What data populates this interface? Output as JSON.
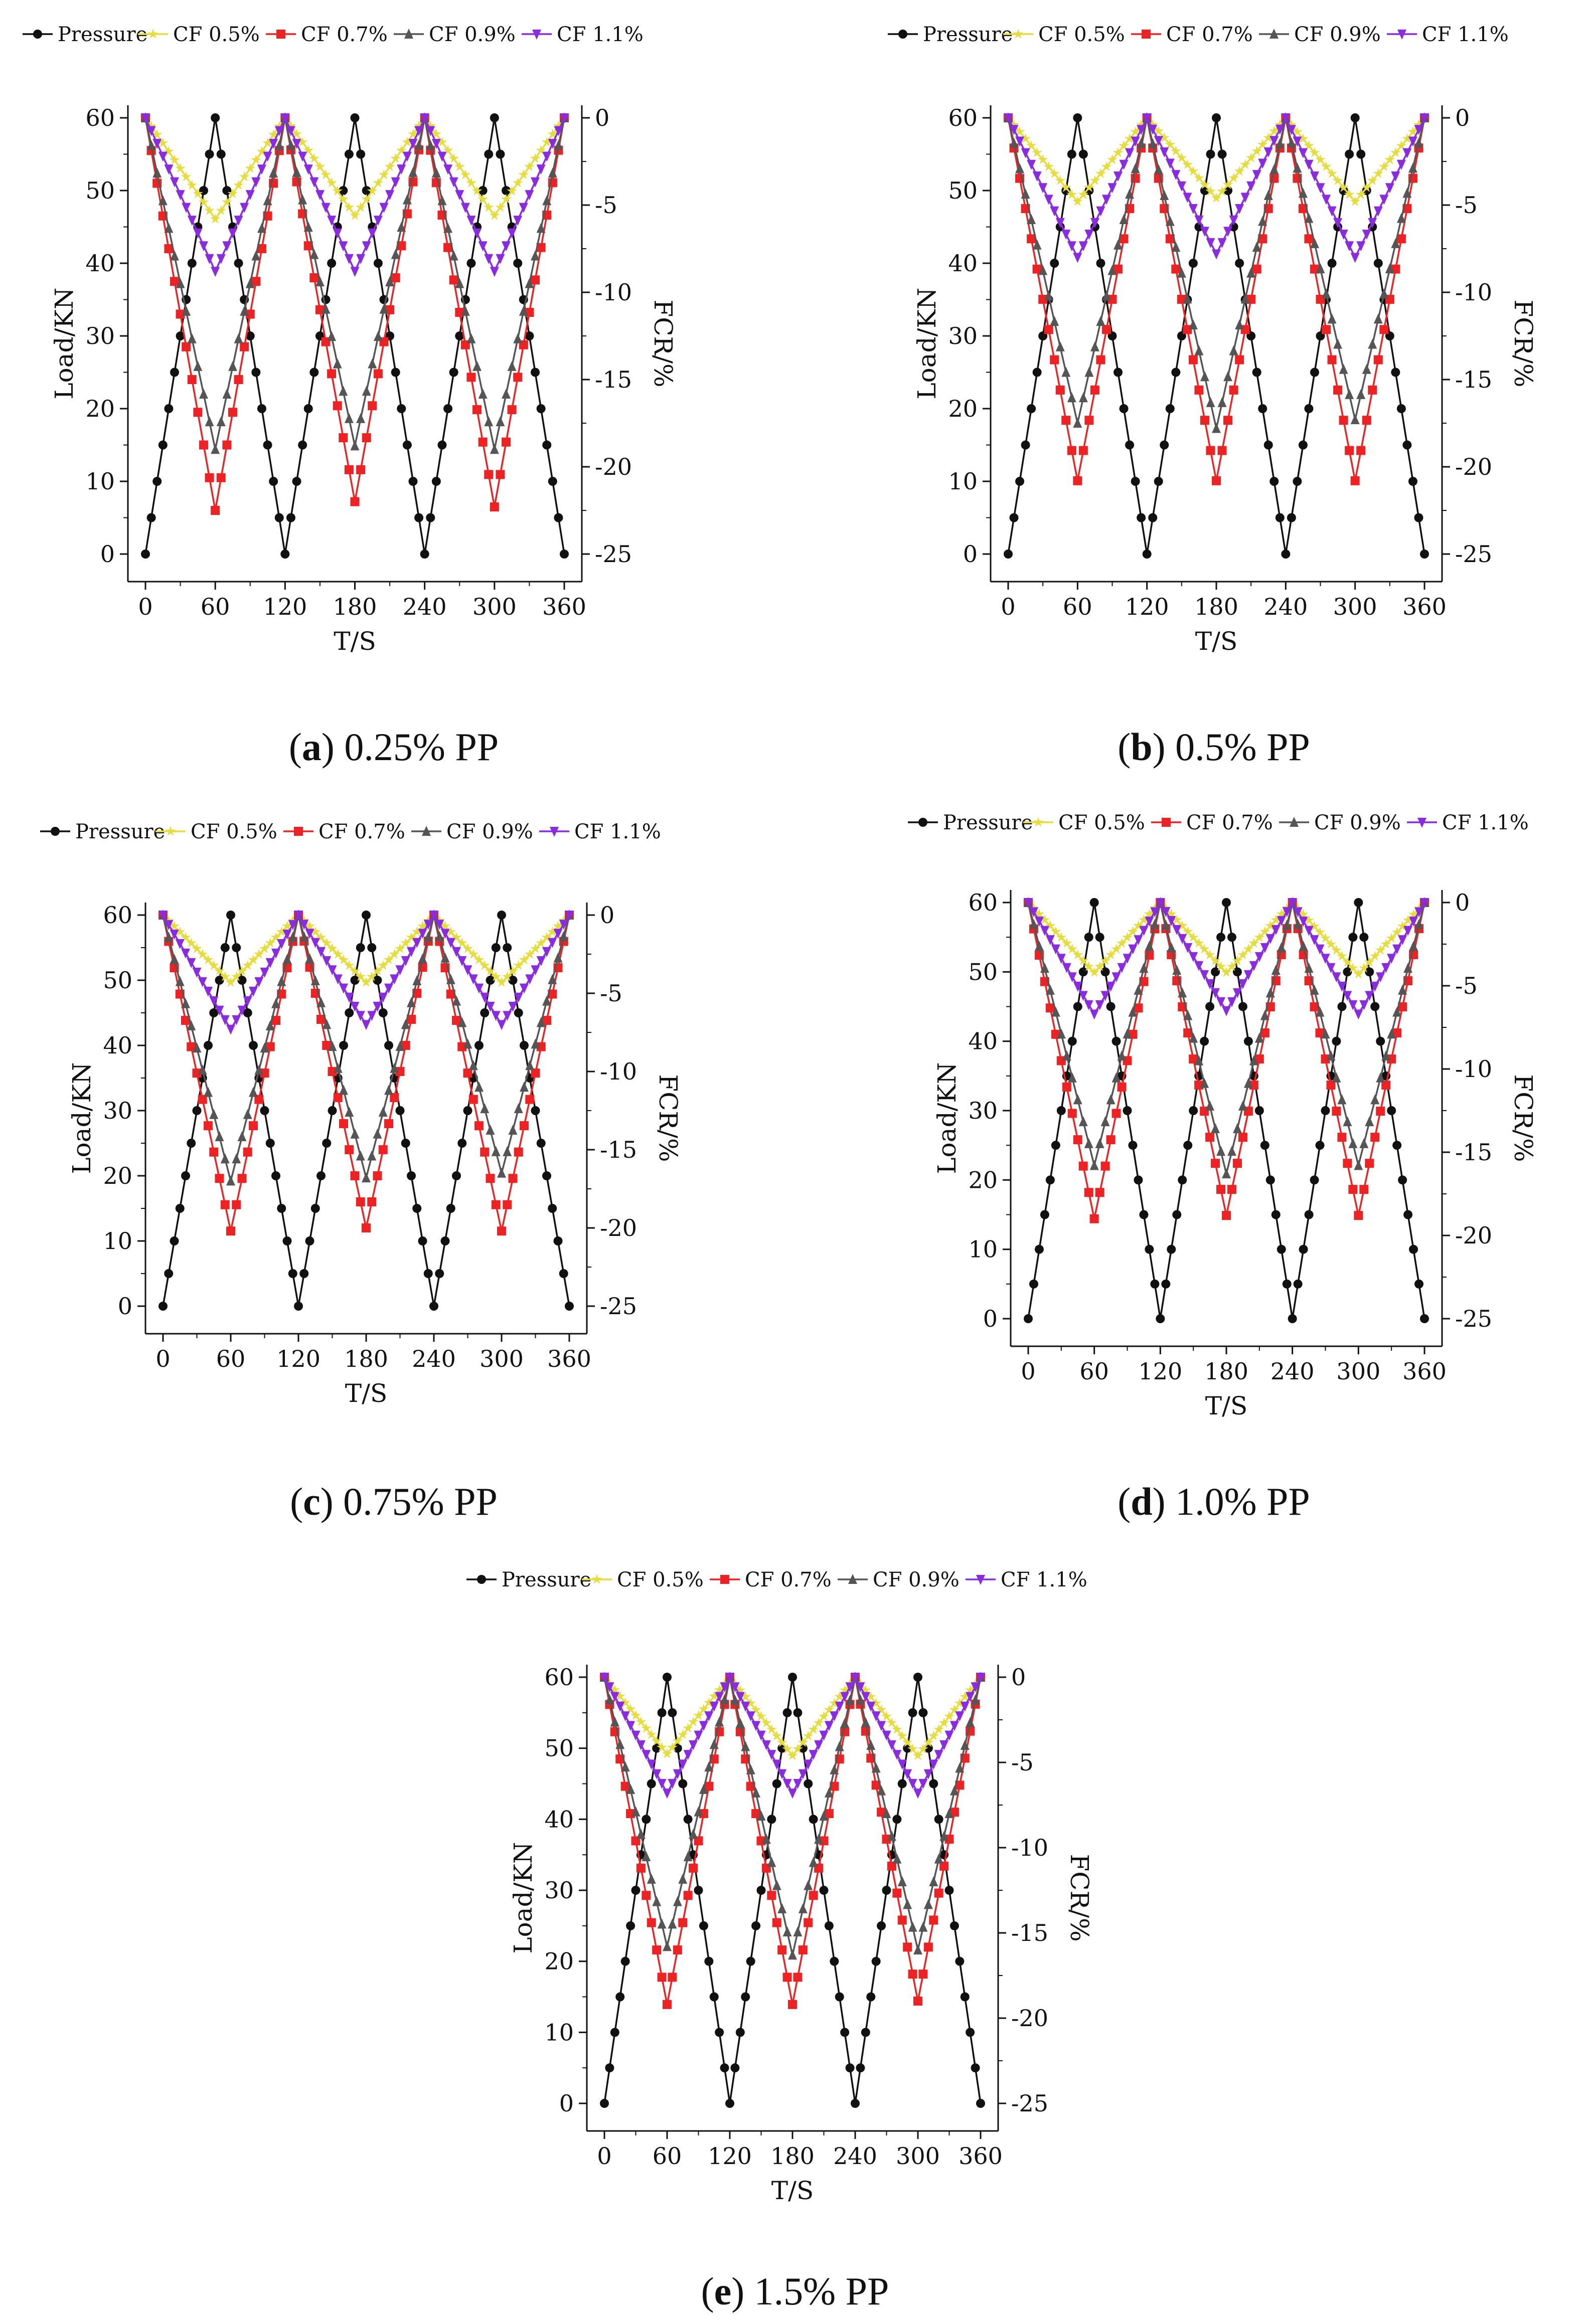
{
  "figure_colors": {
    "Pressure": "#111111",
    "CF 0.5%": "#e6dc3c",
    "CF 0.7%": "#ee2222",
    "CF 0.9%": "#555555",
    "CF 1.1%": "#8a2be2"
  },
  "captions": [
    {
      "letter": "a",
      "text": "0.25% PP"
    },
    {
      "letter": "b",
      "text": "0.5% PP"
    },
    {
      "letter": "c",
      "text": "0.75% PP"
    },
    {
      "letter": "d",
      "text": "1.0% PP"
    },
    {
      "letter": "e",
      "text": "1.5% PP"
    }
  ],
  "chart_data": [
    {
      "type": "line",
      "panel": "a",
      "title": "0.25% PP",
      "xlabel": "T/S",
      "ylabel": "Load/KN",
      "y2label": "FCR/%",
      "xlim": [
        0,
        360
      ],
      "ylim": [
        0,
        60
      ],
      "y2lim": [
        -25,
        0
      ],
      "xticks": [
        0,
        60,
        120,
        180,
        240,
        300,
        360
      ],
      "yticks": [
        0,
        10,
        20,
        30,
        40,
        50,
        60
      ],
      "y2ticks": [
        0,
        -5,
        -10,
        -15,
        -20,
        -25
      ],
      "x": [
        0,
        60,
        120,
        180,
        240,
        300,
        360
      ],
      "series": [
        {
          "name": "Pressure",
          "axis": "left",
          "values": [
            0,
            60,
            0,
            60,
            0,
            60,
            0
          ]
        },
        {
          "name": "CF 0.5%",
          "axis": "right",
          "values": [
            0,
            -5.8,
            0,
            -5.6,
            0,
            -5.6,
            0
          ]
        },
        {
          "name": "CF 0.7%",
          "axis": "right",
          "values": [
            0,
            -22.5,
            0,
            -22.0,
            0,
            -22.3,
            0
          ]
        },
        {
          "name": "CF 0.9%",
          "axis": "right",
          "values": [
            0,
            -19.0,
            0,
            -18.8,
            0,
            -19.0,
            0
          ]
        },
        {
          "name": "CF 1.1%",
          "axis": "right",
          "values": [
            0,
            -8.8,
            0,
            -8.8,
            0,
            -8.8,
            0
          ]
        }
      ]
    },
    {
      "type": "line",
      "panel": "b",
      "title": "0.5% PP",
      "xlabel": "T/S",
      "ylabel": "Load/KN",
      "y2label": "FCR/%",
      "xlim": [
        0,
        360
      ],
      "ylim": [
        0,
        60
      ],
      "y2lim": [
        -25,
        0
      ],
      "xticks": [
        0,
        60,
        120,
        180,
        240,
        300,
        360
      ],
      "yticks": [
        0,
        10,
        20,
        30,
        40,
        50,
        60
      ],
      "y2ticks": [
        0,
        -5,
        -10,
        -15,
        -20,
        -25
      ],
      "x": [
        0,
        60,
        120,
        180,
        240,
        300,
        360
      ],
      "series": [
        {
          "name": "Pressure",
          "axis": "left",
          "values": [
            0,
            60,
            0,
            60,
            0,
            60,
            0
          ]
        },
        {
          "name": "CF 0.5%",
          "axis": "right",
          "values": [
            0,
            -4.8,
            0,
            -4.6,
            0,
            -4.8,
            0
          ]
        },
        {
          "name": "CF 0.7%",
          "axis": "right",
          "values": [
            0,
            -20.8,
            0,
            -20.8,
            0,
            -20.8,
            0
          ]
        },
        {
          "name": "CF 0.9%",
          "axis": "right",
          "values": [
            0,
            -17.5,
            0,
            -17.8,
            0,
            -17.3,
            0
          ]
        },
        {
          "name": "CF 1.1%",
          "axis": "right",
          "values": [
            0,
            -8.0,
            0,
            -7.8,
            0,
            -8.0,
            0
          ]
        }
      ]
    },
    {
      "type": "line",
      "panel": "c",
      "title": "0.75% PP",
      "xlabel": "T/S",
      "ylabel": "Load/KN",
      "y2label": "FCR/%",
      "xlim": [
        0,
        360
      ],
      "ylim": [
        0,
        60
      ],
      "y2lim": [
        -25,
        0
      ],
      "xticks": [
        0,
        60,
        120,
        180,
        240,
        300,
        360
      ],
      "yticks": [
        0,
        10,
        20,
        30,
        40,
        50,
        60
      ],
      "y2ticks": [
        0,
        -5,
        -10,
        -15,
        -20,
        -25
      ],
      "x": [
        0,
        60,
        120,
        180,
        240,
        300,
        360
      ],
      "series": [
        {
          "name": "Pressure",
          "axis": "left",
          "values": [
            0,
            60,
            0,
            60,
            0,
            60,
            0
          ]
        },
        {
          "name": "CF 0.5%",
          "axis": "right",
          "values": [
            0,
            -4.3,
            0,
            -4.3,
            0,
            -4.3,
            0
          ]
        },
        {
          "name": "CF 0.7%",
          "axis": "right",
          "values": [
            0,
            -20.2,
            0,
            -20.0,
            0,
            -20.2,
            0
          ]
        },
        {
          "name": "CF 0.9%",
          "axis": "right",
          "values": [
            0,
            -17.0,
            0,
            -16.8,
            0,
            -16.5,
            0
          ]
        },
        {
          "name": "CF 1.1%",
          "axis": "right",
          "values": [
            0,
            -7.3,
            0,
            -7.0,
            0,
            -7.0,
            0
          ]
        }
      ]
    },
    {
      "type": "line",
      "panel": "d",
      "title": "1.0% PP",
      "xlabel": "T/S",
      "ylabel": "Load/KN",
      "y2label": "FCR/%",
      "xlim": [
        0,
        360
      ],
      "ylim": [
        0,
        60
      ],
      "y2lim": [
        -25,
        0
      ],
      "xticks": [
        0,
        60,
        120,
        180,
        240,
        300,
        360
      ],
      "yticks": [
        0,
        10,
        20,
        30,
        40,
        50,
        60
      ],
      "y2ticks": [
        0,
        -5,
        -10,
        -15,
        -20,
        -25
      ],
      "x": [
        0,
        60,
        120,
        180,
        240,
        300,
        360
      ],
      "series": [
        {
          "name": "Pressure",
          "axis": "left",
          "values": [
            0,
            60,
            0,
            60,
            0,
            60,
            0
          ]
        },
        {
          "name": "CF 0.5%",
          "axis": "right",
          "values": [
            0,
            -4.2,
            0,
            -4.2,
            0,
            -4.3,
            0
          ]
        },
        {
          "name": "CF 0.7%",
          "axis": "right",
          "values": [
            0,
            -19.0,
            0,
            -18.8,
            0,
            -18.8,
            0
          ]
        },
        {
          "name": "CF 0.9%",
          "axis": "right",
          "values": [
            0,
            -15.8,
            0,
            -16.3,
            0,
            -15.8,
            0
          ]
        },
        {
          "name": "CF 1.1%",
          "axis": "right",
          "values": [
            0,
            -6.7,
            0,
            -6.5,
            0,
            -6.7,
            0
          ]
        }
      ]
    },
    {
      "type": "line",
      "panel": "e",
      "title": "1.5% PP",
      "xlabel": "T/S",
      "ylabel": "Load/KN",
      "y2label": "FCR/%",
      "xlim": [
        0,
        360
      ],
      "ylim": [
        0,
        60
      ],
      "y2lim": [
        -25,
        0
      ],
      "xticks": [
        0,
        60,
        120,
        180,
        240,
        300,
        360
      ],
      "yticks": [
        0,
        10,
        20,
        30,
        40,
        50,
        60
      ],
      "y2ticks": [
        0,
        -5,
        -10,
        -15,
        -20,
        -25
      ],
      "x": [
        0,
        60,
        120,
        180,
        240,
        300,
        360
      ],
      "series": [
        {
          "name": "Pressure",
          "axis": "left",
          "values": [
            0,
            60,
            0,
            60,
            0,
            60,
            0
          ]
        },
        {
          "name": "CF 0.5%",
          "axis": "right",
          "values": [
            0,
            -4.5,
            0,
            -4.6,
            0,
            -4.6,
            0
          ]
        },
        {
          "name": "CF 0.7%",
          "axis": "right",
          "values": [
            0,
            -19.2,
            0,
            -19.2,
            0,
            -19.0,
            0
          ]
        },
        {
          "name": "CF 0.9%",
          "axis": "right",
          "values": [
            0,
            -15.8,
            0,
            -16.3,
            0,
            -16.0,
            0
          ]
        },
        {
          "name": "CF 1.1%",
          "axis": "right",
          "values": [
            0,
            -6.8,
            0,
            -6.8,
            0,
            -6.8,
            0
          ]
        }
      ]
    }
  ]
}
